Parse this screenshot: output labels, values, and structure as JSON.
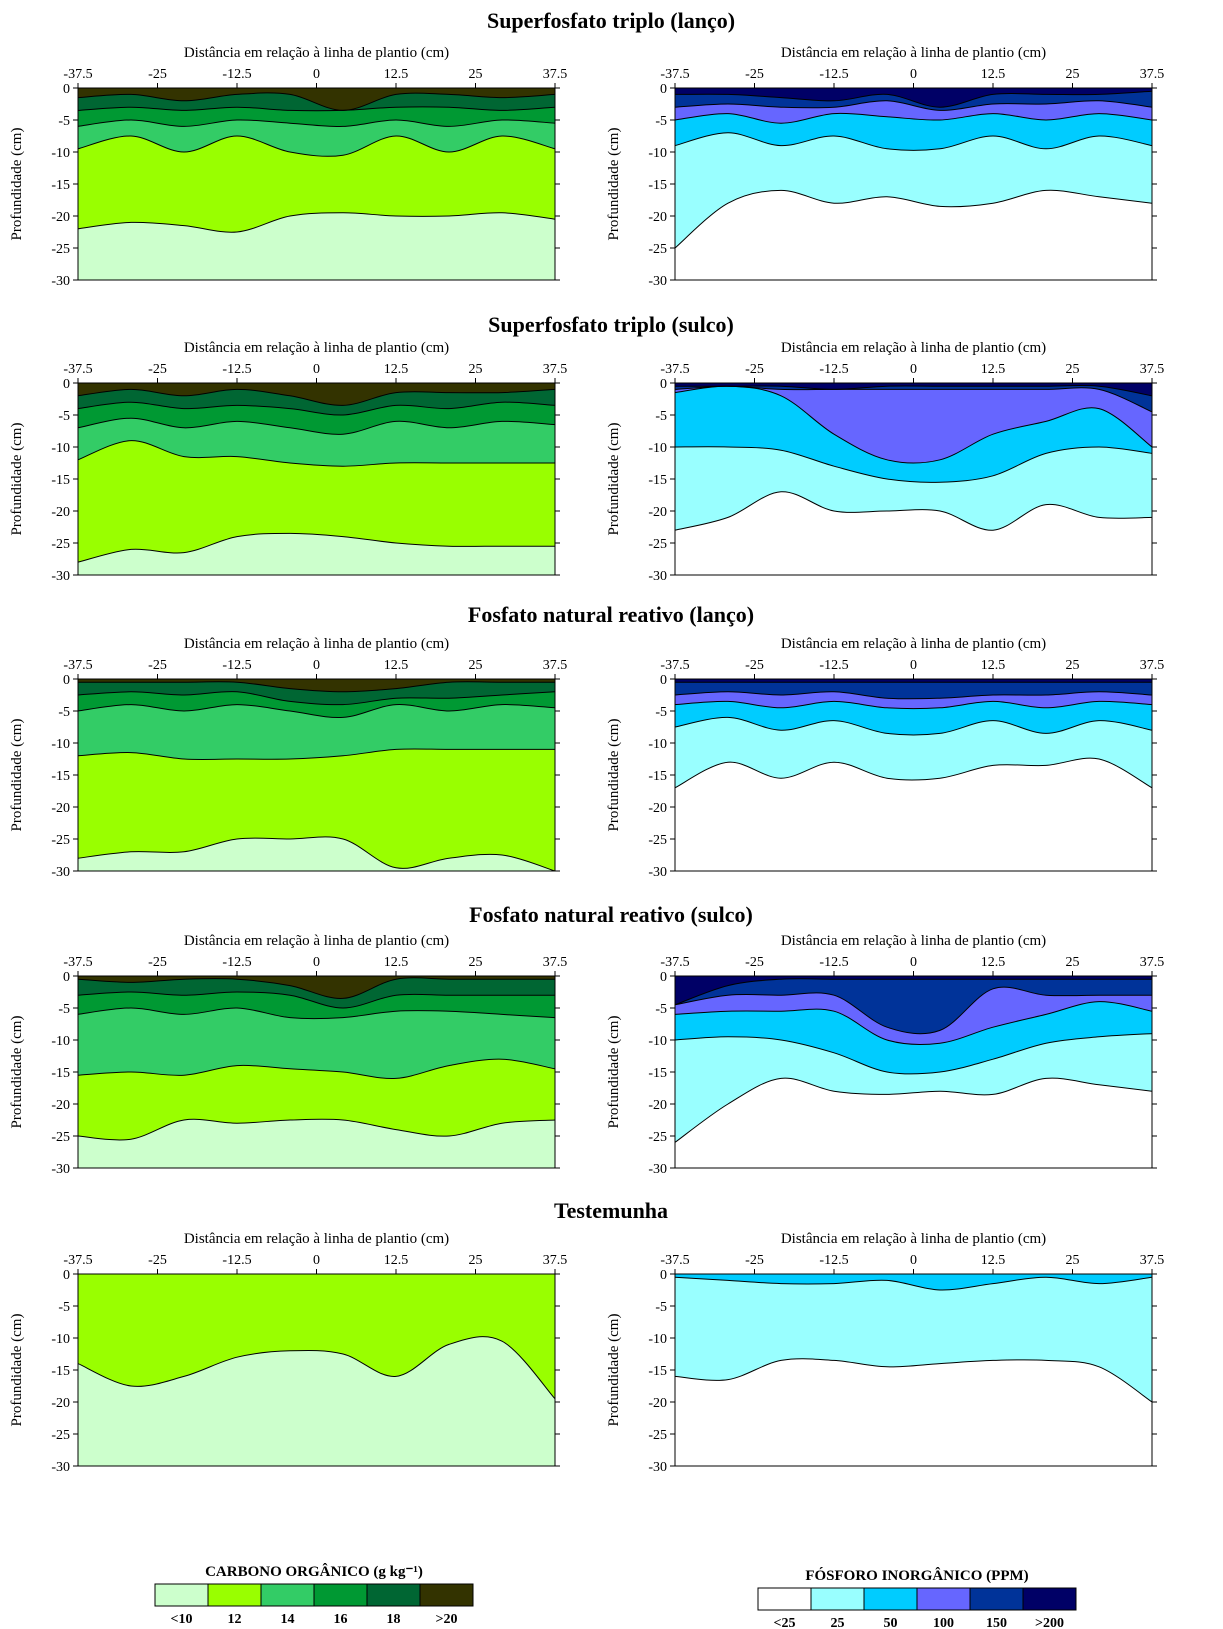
{
  "chart_data": {
    "type": "contour",
    "groups": [
      {
        "title": "Superfosfato triplo (lanço)",
        "carbon": [
          [
            -1.5,
            -1,
            -2,
            -1,
            -1,
            -3.5,
            -1,
            -1,
            -1.5,
            -1
          ],
          [
            -3.5,
            -3,
            -3.5,
            -3,
            -3.5,
            -3.5,
            -3,
            -3,
            -3.5,
            -3
          ],
          [
            -6,
            -5,
            -6,
            -5,
            -5.5,
            -6,
            -5,
            -6,
            -5,
            -5.5
          ],
          [
            -9.5,
            -7.5,
            -10,
            -7.5,
            -10,
            -10.5,
            -7.5,
            -10,
            -7.5,
            -9.5
          ],
          [
            -22,
            -21,
            -21.5,
            -22.5,
            -20,
            -19.5,
            -20,
            -20,
            -19.5,
            -20.5
          ]
        ],
        "phosphorus": [
          [
            -1,
            -1,
            -1.5,
            -2,
            -1,
            -3,
            -1,
            -1,
            -1,
            -0.5
          ],
          [
            -3,
            -2.5,
            -3,
            -3,
            -2,
            -3.5,
            -2.5,
            -2.5,
            -2,
            -3
          ],
          [
            -5,
            -4,
            -5.5,
            -4,
            -4.5,
            -5,
            -4,
            -5,
            -4,
            -5
          ],
          [
            -9,
            -7,
            -9,
            -7.5,
            -9.5,
            -9.5,
            -7.5,
            -9.5,
            -7.5,
            -9
          ],
          [
            -25,
            -18,
            -16,
            -18,
            -17,
            -18.5,
            -18,
            -16,
            -17,
            -18
          ]
        ]
      },
      {
        "title": "Superfosfato triplo (sulco)",
        "carbon": [
          [
            -2,
            -1,
            -2,
            -1,
            -2,
            -3.5,
            -1.5,
            -1.5,
            -1.5,
            -1
          ],
          [
            -4,
            -3,
            -4,
            -3.5,
            -4,
            -5,
            -3.5,
            -4,
            -3,
            -3.5
          ],
          [
            -7,
            -5.5,
            -7,
            -6,
            -7,
            -8,
            -6,
            -7,
            -6,
            -6.5
          ],
          [
            -12,
            -9,
            -11.5,
            -11.5,
            -12.5,
            -13,
            -12.5,
            -12.5,
            -12.5,
            -12.5
          ],
          [
            -28,
            -26,
            -26.5,
            -24,
            -23.5,
            -24,
            -25,
            -25.5,
            -25.5,
            -25.5
          ]
        ]
      },
      {
        "title": "Fosfato natural reativo (lanço)",
        "carbon": [
          [
            -0.5,
            -0.5,
            -0.5,
            -0.5,
            -1.5,
            -2,
            -1.5,
            -0.5,
            -0.5,
            -0.5
          ],
          [
            -2.5,
            -2,
            -2.5,
            -2,
            -3.5,
            -4,
            -3,
            -3,
            -2.5,
            -2
          ],
          [
            -5,
            -4,
            -5,
            -4,
            -5,
            -6,
            -4,
            -5,
            -4,
            -4.5
          ],
          [
            -12,
            -11.5,
            -12.5,
            -12.5,
            -12.5,
            -12,
            -11,
            -11,
            -11,
            -11
          ],
          [
            -28,
            -27,
            -27,
            -25,
            -25,
            -25,
            -29.5,
            -28,
            -27.5,
            -30
          ]
        ]
      },
      {
        "title": "Fosfato natural reativo (sulco)",
        "carbon": [
          [
            -0.5,
            -1,
            -0.5,
            -0.5,
            -1.5,
            -3.5,
            -0.5,
            -0.5,
            -0.5,
            -0.5
          ],
          [
            -3,
            -2.5,
            -3,
            -2.5,
            -3,
            -5,
            -3,
            -3,
            -3,
            -3
          ],
          [
            -6,
            -5,
            -6,
            -5,
            -6.5,
            -6.5,
            -5.5,
            -5.5,
            -6,
            -6.5
          ],
          [
            -15.5,
            -15,
            -15.5,
            -14,
            -14.5,
            -15,
            -16,
            -14,
            -13,
            -14.5
          ],
          [
            -25,
            -25.5,
            -22.5,
            -23,
            -22.5,
            -22.5,
            -24,
            -25,
            -23,
            -22.5
          ]
        ]
      },
      {
        "title": "Testemunha",
        "carbon": [
          [
            -14,
            -17.5,
            -16,
            -13,
            -12,
            -12.5,
            -16,
            -11,
            -10.5,
            -19.5
          ]
        ]
      }
    ],
    "x_axis_label": "Distância em relação à linha de plantio (cm)",
    "y_axis_label": "Profundidade (cm)",
    "x_ticks": [
      "-37.5",
      "-25",
      "-12.5",
      "0",
      "12.5",
      "25",
      "37.5"
    ],
    "y_ticks": [
      "0",
      "-5",
      "-10",
      "-15",
      "-20",
      "-25",
      "-30"
    ],
    "xlim": [
      -37.5,
      37.5
    ],
    "ylim": [
      -30,
      0
    ],
    "carbon_legend": {
      "title": "CARBONO ORGÂNICO (g kg⁻¹)",
      "labels": [
        "<10",
        "12",
        "14",
        "16",
        "18",
        ">20"
      ],
      "colors": [
        "#ccffcc",
        "#99ff00",
        "#33cc66",
        "#009933",
        "#006633",
        "#333300"
      ]
    },
    "phosphorus_legend": {
      "title": "FÓSFORO INORGÂNICO (PPM)",
      "labels": [
        "<25",
        "25",
        "50",
        "100",
        "150",
        ">200"
      ],
      "colors": [
        "#ffffff",
        "#99ffff",
        "#00ccff",
        "#6666ff",
        "#003399",
        "#000066"
      ]
    }
  }
}
